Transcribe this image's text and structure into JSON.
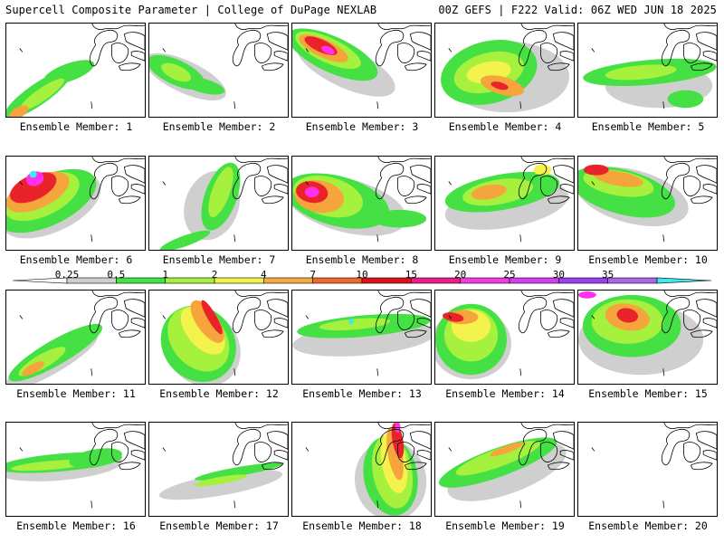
{
  "header": {
    "left_title": "Supercell Composite Parameter | College of DuPage NEXLAB",
    "right_title": "00Z GEFS | F222 Valid: 06Z WED JUN 18 2025"
  },
  "member_label_prefix": "Ensemble Member: ",
  "members": [
    1,
    2,
    3,
    4,
    5,
    6,
    7,
    8,
    9,
    10,
    11,
    12,
    13,
    14,
    15,
    16,
    17,
    18,
    19,
    20
  ],
  "colorbar": {
    "labels": [
      "0.25",
      "0.5",
      "1",
      "2",
      "4",
      "7",
      "10",
      "15",
      "20",
      "25",
      "30",
      "35"
    ],
    "colors": [
      "#cfcfcf",
      "#3fe63f",
      "#a8f040",
      "#f2f24a",
      "#f6ab3e",
      "#ee6a2a",
      "#e01018",
      "#ec1c8a",
      "#f23ce0",
      "#d040f0",
      "#9a40f0",
      "#a868e8",
      "#40e8f0"
    ]
  },
  "map_colors": {
    "gray": "#cfcfcf",
    "green": "#44e044",
    "lightgreen": "#a6f03e",
    "yellow": "#f4f24c",
    "orange": "#f5a53c",
    "red": "#e8242a",
    "magenta": "#ff30ee",
    "cyan": "#40e8f0"
  }
}
